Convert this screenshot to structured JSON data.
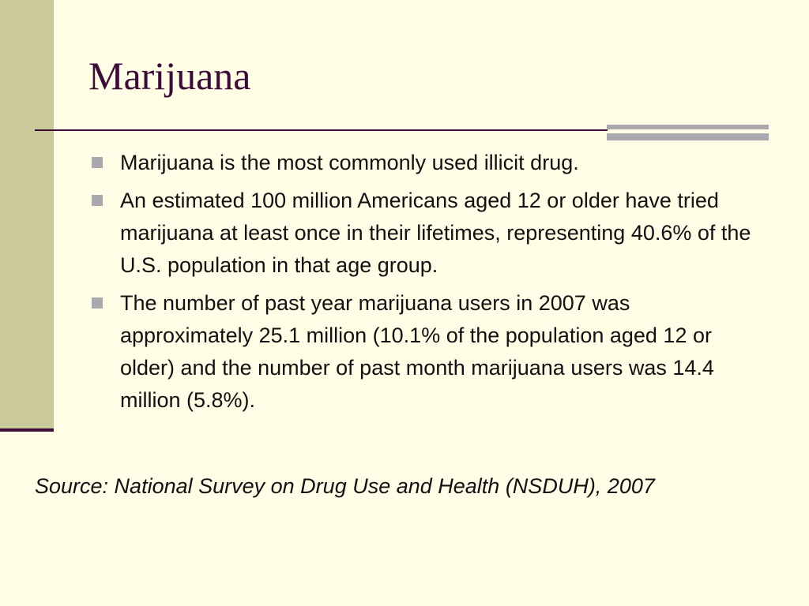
{
  "slide": {
    "title": "Marijuana",
    "bullets": [
      "Marijuana is the most commonly used illicit drug.",
      "An estimated 100 million Americans aged 12 or older have tried marijuana at least once in their lifetimes, representing 40.6% of the U.S. population in that age group.",
      "The number of past year marijuana users in 2007 was approximately 25.1 million (10.1% of the population aged 12 or older) and the number of past month marijuana users was 14.4 million (5.8%)."
    ],
    "source": "Source: National Survey on Drug Use and Health (NSDUH), 2007"
  },
  "colors": {
    "background": "#fffde6",
    "sidebar": "#c9c99a",
    "accent_dark": "#3a0c36",
    "accent_gray": "#a9a9ad",
    "text": "#111111"
  }
}
